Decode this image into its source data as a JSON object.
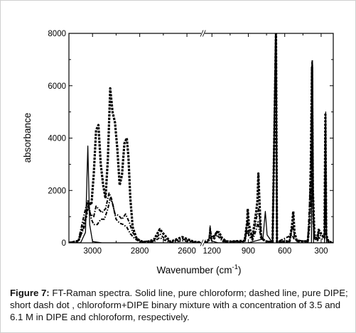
{
  "chart_data": {
    "type": "line",
    "ylabel": "absorbance",
    "xlabel": "Wavenumber  (cm",
    "xlabel_superscript": "-1",
    "xlabel_suffix": ")",
    "ylim": [
      0,
      8000
    ],
    "y_ticks": [
      0,
      2000,
      4000,
      6000,
      8000
    ],
    "x_axis": "reversed, broken between 2540 and 1260 cm-1",
    "x_segments": [
      {
        "xlim": [
          3100,
          2540
        ],
        "ticks": [
          3000,
          2800,
          2600
        ]
      },
      {
        "xlim": [
          1260,
          200
        ],
        "ticks": [
          1200,
          900,
          600,
          300
        ]
      }
    ],
    "series": [
      {
        "name": "pure chloroform",
        "style": "solid",
        "color": "#000000",
        "points": [
          [
            3100,
            0
          ],
          [
            3050,
            10
          ],
          [
            3030,
            400
          ],
          [
            3020,
            3700
          ],
          [
            3012,
            700
          ],
          [
            3000,
            50
          ],
          [
            2960,
            0
          ],
          [
            2540,
            0
          ],
          [
            1260,
            0
          ],
          [
            1225,
            80
          ],
          [
            1215,
            650
          ],
          [
            1205,
            80
          ],
          [
            1150,
            0
          ],
          [
            900,
            0
          ],
          [
            780,
            150
          ],
          [
            760,
            1200
          ],
          [
            745,
            300
          ],
          [
            700,
            0
          ],
          [
            672,
            9000
          ],
          [
            664,
            0
          ],
          [
            380,
            0
          ],
          [
            370,
            6800
          ],
          [
            362,
            0
          ],
          [
            272,
            0
          ],
          [
            262,
            5000
          ],
          [
            255,
            0
          ],
          [
            200,
            0
          ]
        ]
      },
      {
        "name": "pure DIPE",
        "style": "dashed",
        "color": "#000000",
        "points": [
          [
            3100,
            0
          ],
          [
            3060,
            60
          ],
          [
            3030,
            900
          ],
          [
            3015,
            1550
          ],
          [
            3005,
            1450
          ],
          [
            2995,
            2600
          ],
          [
            2985,
            4300
          ],
          [
            2975,
            4500
          ],
          [
            2965,
            3000
          ],
          [
            2955,
            2200
          ],
          [
            2945,
            1700
          ],
          [
            2935,
            3200
          ],
          [
            2925,
            5900
          ],
          [
            2915,
            5000
          ],
          [
            2905,
            4600
          ],
          [
            2895,
            3600
          ],
          [
            2885,
            2200
          ],
          [
            2875,
            2600
          ],
          [
            2865,
            3800
          ],
          [
            2855,
            4000
          ],
          [
            2848,
            3300
          ],
          [
            2840,
            1700
          ],
          [
            2830,
            600
          ],
          [
            2815,
            200
          ],
          [
            2800,
            80
          ],
          [
            2775,
            20
          ],
          [
            2740,
            120
          ],
          [
            2715,
            520
          ],
          [
            2700,
            350
          ],
          [
            2670,
            40
          ],
          [
            2620,
            220
          ],
          [
            2570,
            40
          ],
          [
            2540,
            20
          ],
          [
            1260,
            0
          ],
          [
            1200,
            200
          ],
          [
            1175,
            280
          ],
          [
            1160,
            420
          ],
          [
            1140,
            400
          ],
          [
            1120,
            200
          ],
          [
            1080,
            40
          ],
          [
            930,
            80
          ],
          [
            910,
            780
          ],
          [
            905,
            1300
          ],
          [
            895,
            700
          ],
          [
            870,
            200
          ],
          [
            860,
            400
          ],
          [
            835,
            1200
          ],
          [
            825,
            1600
          ],
          [
            817,
            2650
          ],
          [
            810,
            1800
          ],
          [
            795,
            200
          ],
          [
            760,
            60
          ],
          [
            700,
            30
          ],
          [
            672,
            8000
          ],
          [
            664,
            40
          ],
          [
            560,
            60
          ],
          [
            540,
            650
          ],
          [
            530,
            1200
          ],
          [
            520,
            400
          ],
          [
            500,
            60
          ],
          [
            410,
            60
          ],
          [
            395,
            800
          ],
          [
            385,
            3000
          ],
          [
            375,
            6700
          ],
          [
            368,
            2000
          ],
          [
            355,
            300
          ],
          [
            330,
            100
          ],
          [
            320,
            500
          ],
          [
            300,
            350
          ],
          [
            285,
            250
          ],
          [
            272,
            300
          ],
          [
            265,
            4900
          ],
          [
            258,
            300
          ],
          [
            240,
            50
          ],
          [
            200,
            0
          ]
        ]
      },
      {
        "name": "chloroform+DIPE binary mixture, 3.5 M in DIPE",
        "style": "dash-dot",
        "color": "#000000",
        "points": [
          [
            3100,
            0
          ],
          [
            3060,
            100
          ],
          [
            3030,
            1300
          ],
          [
            3020,
            1600
          ],
          [
            3010,
            1100
          ],
          [
            2995,
            1000
          ],
          [
            2985,
            1400
          ],
          [
            2975,
            1300
          ],
          [
            2960,
            1150
          ],
          [
            2945,
            1300
          ],
          [
            2930,
            1900
          ],
          [
            2920,
            1700
          ],
          [
            2905,
            1100
          ],
          [
            2890,
            1050
          ],
          [
            2875,
            900
          ],
          [
            2860,
            1100
          ],
          [
            2845,
            800
          ],
          [
            2830,
            400
          ],
          [
            2810,
            150
          ],
          [
            2790,
            50
          ],
          [
            2740,
            80
          ],
          [
            2715,
            350
          ],
          [
            2700,
            200
          ],
          [
            2670,
            40
          ],
          [
            2620,
            150
          ],
          [
            2570,
            30
          ],
          [
            2540,
            10
          ],
          [
            1260,
            0
          ],
          [
            1225,
            40
          ],
          [
            1215,
            500
          ],
          [
            1205,
            250
          ],
          [
            1180,
            230
          ],
          [
            1160,
            430
          ],
          [
            1140,
            300
          ],
          [
            1110,
            80
          ],
          [
            930,
            50
          ],
          [
            905,
            900
          ],
          [
            895,
            400
          ],
          [
            865,
            150
          ],
          [
            835,
            900
          ],
          [
            825,
            1100
          ],
          [
            815,
            1300
          ],
          [
            805,
            800
          ],
          [
            790,
            200
          ],
          [
            760,
            60
          ],
          [
            700,
            40
          ],
          [
            672,
            8500
          ],
          [
            664,
            40
          ],
          [
            560,
            50
          ],
          [
            535,
            700
          ],
          [
            520,
            250
          ],
          [
            500,
            60
          ],
          [
            410,
            60
          ],
          [
            385,
            2500
          ],
          [
            375,
            6900
          ],
          [
            368,
            1500
          ],
          [
            355,
            200
          ],
          [
            320,
            350
          ],
          [
            300,
            250
          ],
          [
            272,
            200
          ],
          [
            265,
            4000
          ],
          [
            258,
            300
          ],
          [
            240,
            40
          ],
          [
            200,
            0
          ]
        ]
      },
      {
        "name": "chloroform+DIPE binary mixture, 6.1 M in chloroform",
        "style": "dash-dot",
        "color": "#000000",
        "points": [
          [
            3100,
            0
          ],
          [
            3060,
            80
          ],
          [
            3035,
            600
          ],
          [
            3025,
            1200
          ],
          [
            3015,
            1400
          ],
          [
            3005,
            900
          ],
          [
            2995,
            700
          ],
          [
            2980,
            700
          ],
          [
            2965,
            900
          ],
          [
            2950,
            900
          ],
          [
            2935,
            1300
          ],
          [
            2925,
            1700
          ],
          [
            2915,
            1500
          ],
          [
            2900,
            900
          ],
          [
            2885,
            750
          ],
          [
            2870,
            700
          ],
          [
            2855,
            600
          ],
          [
            2840,
            350
          ],
          [
            2820,
            150
          ],
          [
            2800,
            40
          ],
          [
            2740,
            40
          ],
          [
            2715,
            200
          ],
          [
            2700,
            120
          ],
          [
            2670,
            20
          ],
          [
            2620,
            80
          ],
          [
            2540,
            0
          ],
          [
            1260,
            0
          ],
          [
            1225,
            60
          ],
          [
            1215,
            600
          ],
          [
            1205,
            250
          ],
          [
            1180,
            150
          ],
          [
            1160,
            300
          ],
          [
            1140,
            200
          ],
          [
            1110,
            50
          ],
          [
            930,
            40
          ],
          [
            905,
            500
          ],
          [
            895,
            250
          ],
          [
            865,
            100
          ],
          [
            835,
            500
          ],
          [
            820,
            800
          ],
          [
            810,
            500
          ],
          [
            790,
            150
          ],
          [
            760,
            50
          ],
          [
            700,
            30
          ],
          [
            672,
            8800
          ],
          [
            664,
            30
          ],
          [
            540,
            300
          ],
          [
            520,
            120
          ],
          [
            410,
            40
          ],
          [
            385,
            1500
          ],
          [
            373,
            7000
          ],
          [
            366,
            800
          ],
          [
            355,
            100
          ],
          [
            320,
            200
          ],
          [
            300,
            150
          ],
          [
            272,
            150
          ],
          [
            264,
            4500
          ],
          [
            257,
            200
          ],
          [
            240,
            30
          ],
          [
            200,
            0
          ]
        ]
      }
    ],
    "axis_break_mark": "//"
  },
  "caption": {
    "label": "Figure 7:",
    "text": " FT-Raman spectra. Solid line, pure chloroform; dashed line, pure DIPE; short dash dot , chloroform+DIPE binary mixture with a concentration of 3.5 and 6.1 M in DIPE and chloroform, respectively."
  }
}
